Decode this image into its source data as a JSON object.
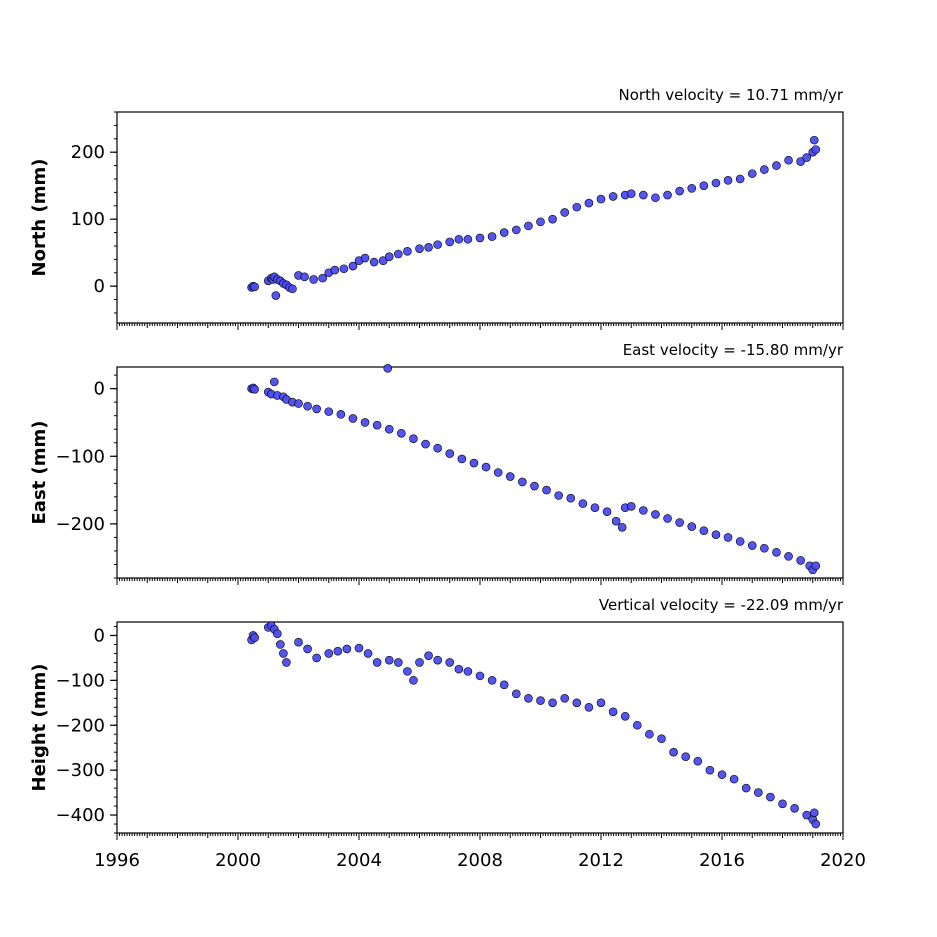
{
  "chart_data": [
    {
      "type": "scatter",
      "title": "North velocity = 10.71 mm/yr",
      "ylabel": "North (mm)",
      "xlim": [
        1996,
        2020
      ],
      "ylim": [
        -55,
        260
      ],
      "yticks": [
        0,
        100,
        200
      ],
      "series": [
        {
          "color": "#4b4bf0",
          "edge": "#000000",
          "points": [
            [
              2000.45,
              -2
            ],
            [
              2000.5,
              0
            ],
            [
              2000.55,
              -1
            ],
            [
              2001.0,
              8
            ],
            [
              2001.1,
              12
            ],
            [
              2001.15,
              10
            ],
            [
              2001.2,
              14
            ],
            [
              2001.25,
              -14
            ],
            [
              2001.3,
              10
            ],
            [
              2001.4,
              8
            ],
            [
              2001.5,
              4
            ],
            [
              2001.6,
              2
            ],
            [
              2001.7,
              -2
            ],
            [
              2001.8,
              -4
            ],
            [
              2002.0,
              16
            ],
            [
              2002.2,
              14
            ],
            [
              2002.5,
              10
            ],
            [
              2002.8,
              12
            ],
            [
              2003.0,
              20
            ],
            [
              2003.2,
              24
            ],
            [
              2003.5,
              26
            ],
            [
              2003.8,
              30
            ],
            [
              2004.0,
              38
            ],
            [
              2004.2,
              42
            ],
            [
              2004.5,
              36
            ],
            [
              2004.8,
              38
            ],
            [
              2005.0,
              44
            ],
            [
              2005.3,
              48
            ],
            [
              2005.6,
              52
            ],
            [
              2006.0,
              56
            ],
            [
              2006.3,
              58
            ],
            [
              2006.6,
              62
            ],
            [
              2007.0,
              66
            ],
            [
              2007.3,
              70
            ],
            [
              2007.6,
              70
            ],
            [
              2008.0,
              72
            ],
            [
              2008.4,
              74
            ],
            [
              2008.8,
              80
            ],
            [
              2009.2,
              84
            ],
            [
              2009.6,
              90
            ],
            [
              2010.0,
              96
            ],
            [
              2010.4,
              100
            ],
            [
              2010.8,
              110
            ],
            [
              2011.2,
              118
            ],
            [
              2011.6,
              124
            ],
            [
              2012.0,
              130
            ],
            [
              2012.4,
              134
            ],
            [
              2012.8,
              136
            ],
            [
              2013.0,
              138
            ],
            [
              2013.4,
              136
            ],
            [
              2013.8,
              132
            ],
            [
              2014.2,
              136
            ],
            [
              2014.6,
              142
            ],
            [
              2015.0,
              146
            ],
            [
              2015.4,
              150
            ],
            [
              2015.8,
              154
            ],
            [
              2016.2,
              158
            ],
            [
              2016.6,
              160
            ],
            [
              2017.0,
              168
            ],
            [
              2017.4,
              174
            ],
            [
              2017.8,
              180
            ],
            [
              2018.2,
              188
            ],
            [
              2018.6,
              186
            ],
            [
              2018.8,
              192
            ],
            [
              2019.0,
              200
            ],
            [
              2019.05,
              218
            ],
            [
              2019.1,
              204
            ]
          ]
        }
      ]
    },
    {
      "type": "scatter",
      "title": "East velocity = -15.80 mm/yr",
      "ylabel": "East (mm)",
      "xlim": [
        1996,
        2020
      ],
      "ylim": [
        -280,
        32
      ],
      "yticks": [
        0,
        -100,
        -200
      ],
      "series": [
        {
          "color": "#4b4bf0",
          "edge": "#000000",
          "points": [
            [
              2000.45,
              0
            ],
            [
              2000.5,
              1
            ],
            [
              2000.55,
              -1
            ],
            [
              2001.0,
              -5
            ],
            [
              2001.1,
              -8
            ],
            [
              2001.2,
              10
            ],
            [
              2001.3,
              -10
            ],
            [
              2001.5,
              -12
            ],
            [
              2001.6,
              -16
            ],
            [
              2001.8,
              -20
            ],
            [
              2002.0,
              -22
            ],
            [
              2002.3,
              -26
            ],
            [
              2002.6,
              -30
            ],
            [
              2003.0,
              -34
            ],
            [
              2003.4,
              -38
            ],
            [
              2003.8,
              -44
            ],
            [
              2004.2,
              -50
            ],
            [
              2004.6,
              -54
            ],
            [
              2004.95,
              30
            ],
            [
              2005.0,
              -60
            ],
            [
              2005.4,
              -66
            ],
            [
              2005.8,
              -74
            ],
            [
              2006.2,
              -82
            ],
            [
              2006.6,
              -88
            ],
            [
              2007.0,
              -96
            ],
            [
              2007.4,
              -104
            ],
            [
              2007.8,
              -110
            ],
            [
              2008.2,
              -116
            ],
            [
              2008.6,
              -124
            ],
            [
              2009.0,
              -130
            ],
            [
              2009.4,
              -138
            ],
            [
              2009.8,
              -144
            ],
            [
              2010.2,
              -150
            ],
            [
              2010.6,
              -158
            ],
            [
              2011.0,
              -162
            ],
            [
              2011.4,
              -170
            ],
            [
              2011.8,
              -176
            ],
            [
              2012.2,
              -182
            ],
            [
              2012.5,
              -196
            ],
            [
              2012.7,
              -205
            ],
            [
              2012.8,
              -176
            ],
            [
              2013.0,
              -174
            ],
            [
              2013.4,
              -180
            ],
            [
              2013.8,
              -186
            ],
            [
              2014.2,
              -192
            ],
            [
              2014.6,
              -198
            ],
            [
              2015.0,
              -204
            ],
            [
              2015.4,
              -210
            ],
            [
              2015.8,
              -216
            ],
            [
              2016.2,
              -220
            ],
            [
              2016.6,
              -226
            ],
            [
              2017.0,
              -232
            ],
            [
              2017.4,
              -236
            ],
            [
              2017.8,
              -242
            ],
            [
              2018.2,
              -248
            ],
            [
              2018.6,
              -254
            ],
            [
              2018.9,
              -262
            ],
            [
              2019.0,
              -268
            ],
            [
              2019.1,
              -262
            ]
          ]
        }
      ]
    },
    {
      "type": "scatter",
      "title": "Vertical velocity = -22.09 mm/yr",
      "ylabel": "Height (mm)",
      "xlim": [
        1996,
        2020
      ],
      "ylim": [
        -440,
        30
      ],
      "yticks": [
        0,
        -100,
        -200,
        -300,
        -400
      ],
      "xticks": [
        1996,
        2000,
        2004,
        2008,
        2012,
        2016,
        2020
      ],
      "series": [
        {
          "color": "#4b4bf0",
          "edge": "#000000",
          "points": [
            [
              2000.45,
              -10
            ],
            [
              2000.5,
              0
            ],
            [
              2000.55,
              -5
            ],
            [
              2001.0,
              18
            ],
            [
              2001.1,
              22
            ],
            [
              2001.2,
              14
            ],
            [
              2001.3,
              4
            ],
            [
              2001.4,
              -20
            ],
            [
              2001.5,
              -40
            ],
            [
              2001.6,
              -60
            ],
            [
              2002.0,
              -15
            ],
            [
              2002.3,
              -30
            ],
            [
              2002.6,
              -50
            ],
            [
              2003.0,
              -40
            ],
            [
              2003.3,
              -35
            ],
            [
              2003.6,
              -30
            ],
            [
              2004.0,
              -28
            ],
            [
              2004.3,
              -40
            ],
            [
              2004.6,
              -60
            ],
            [
              2005.0,
              -55
            ],
            [
              2005.3,
              -60
            ],
            [
              2005.6,
              -80
            ],
            [
              2005.8,
              -100
            ],
            [
              2006.0,
              -60
            ],
            [
              2006.3,
              -45
            ],
            [
              2006.6,
              -55
            ],
            [
              2007.0,
              -60
            ],
            [
              2007.3,
              -75
            ],
            [
              2007.6,
              -80
            ],
            [
              2008.0,
              -90
            ],
            [
              2008.4,
              -100
            ],
            [
              2008.8,
              -110
            ],
            [
              2009.2,
              -130
            ],
            [
              2009.6,
              -140
            ],
            [
              2010.0,
              -145
            ],
            [
              2010.4,
              -150
            ],
            [
              2010.8,
              -140
            ],
            [
              2011.2,
              -150
            ],
            [
              2011.6,
              -160
            ],
            [
              2012.0,
              -150
            ],
            [
              2012.4,
              -170
            ],
            [
              2012.8,
              -180
            ],
            [
              2013.2,
              -200
            ],
            [
              2013.6,
              -220
            ],
            [
              2014.0,
              -230
            ],
            [
              2014.4,
              -260
            ],
            [
              2014.8,
              -270
            ],
            [
              2015.2,
              -280
            ],
            [
              2015.6,
              -300
            ],
            [
              2016.0,
              -310
            ],
            [
              2016.4,
              -320
            ],
            [
              2016.8,
              -340
            ],
            [
              2017.2,
              -350
            ],
            [
              2017.6,
              -360
            ],
            [
              2018.0,
              -375
            ],
            [
              2018.4,
              -385
            ],
            [
              2018.8,
              -400
            ],
            [
              2019.0,
              -410
            ],
            [
              2019.1,
              -420
            ],
            [
              2019.05,
              -395
            ]
          ]
        }
      ]
    }
  ]
}
